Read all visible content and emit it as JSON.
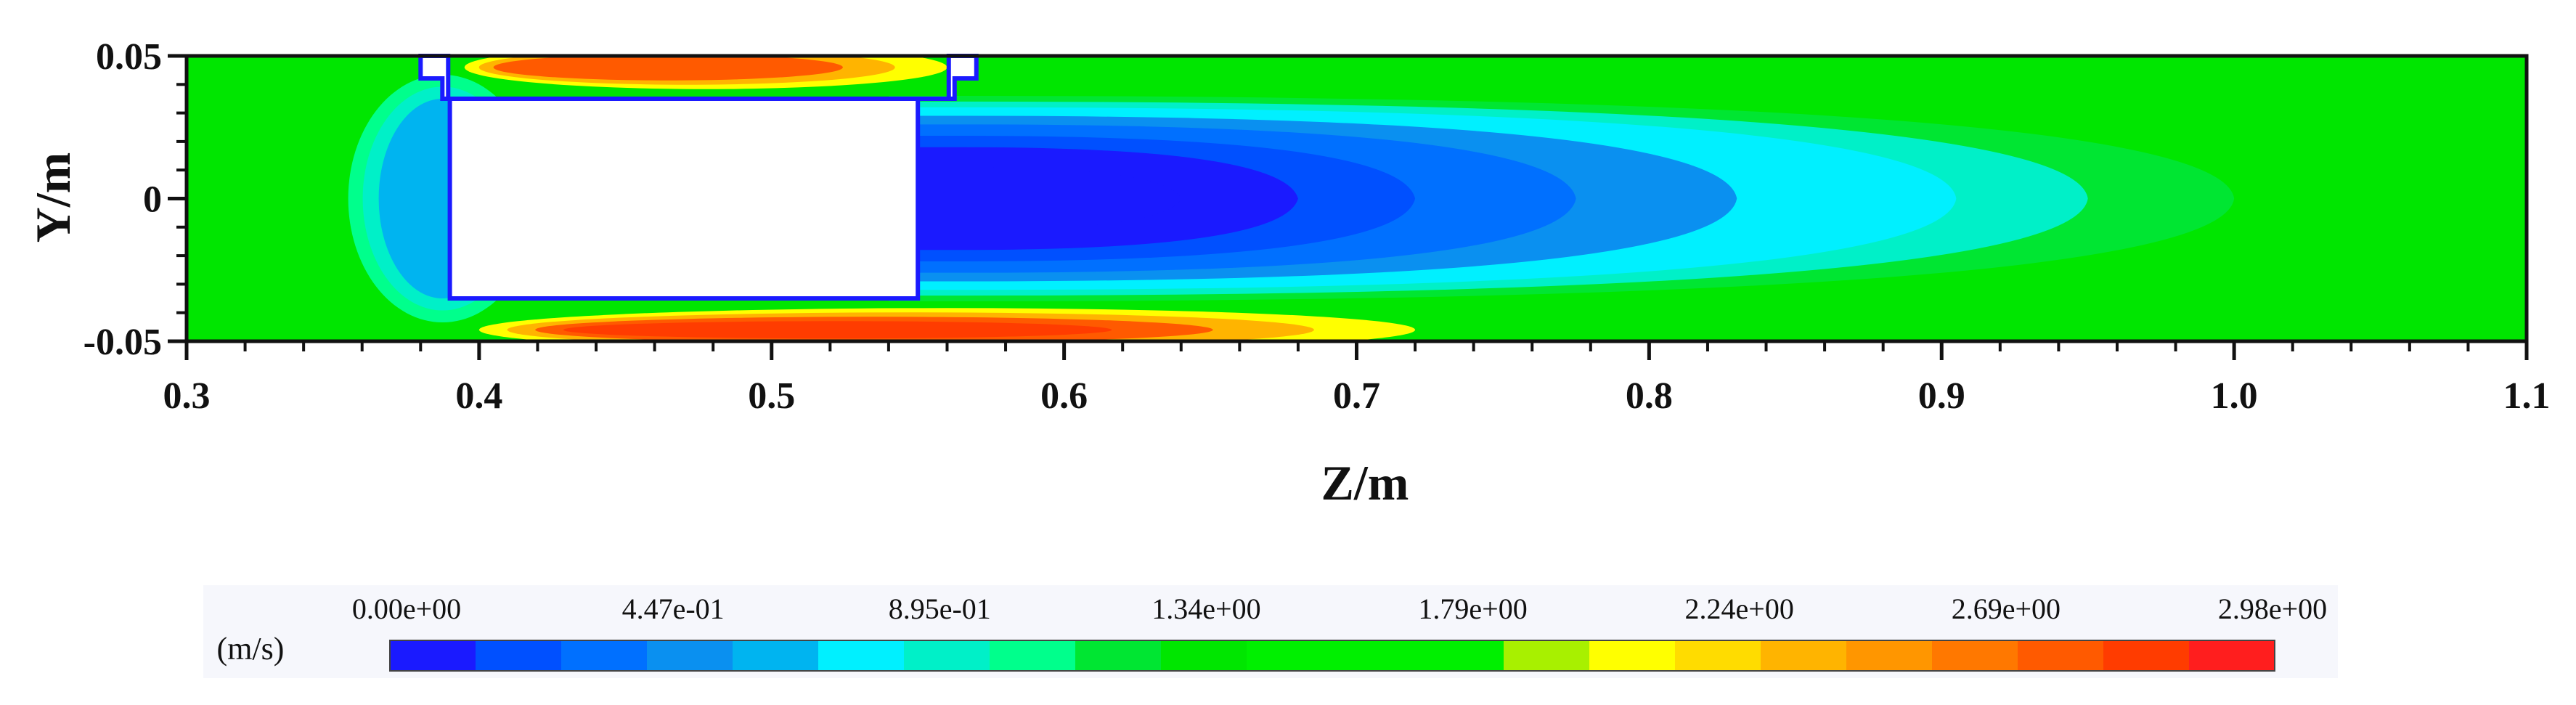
{
  "chart_data": {
    "type": "heatmap",
    "xlabel": "Z/m",
    "ylabel": "Y/m",
    "xlim": [
      0.3,
      1.1
    ],
    "ylim": [
      -0.05,
      0.05
    ],
    "x_ticks": [
      0.3,
      0.4,
      0.5,
      0.6,
      0.7,
      0.8,
      0.9,
      1.0,
      1.1
    ],
    "x_tick_labels": [
      "0.3",
      "0.4",
      "0.5",
      "0.6",
      "0.7",
      "0.8",
      "0.9",
      "1.0",
      "1.1"
    ],
    "y_ticks": [
      0.05,
      0,
      -0.05
    ],
    "y_tick_labels": [
      "0.05",
      "0",
      "-0.05"
    ],
    "quantity_unit": "(m/s)",
    "colorbar": {
      "min": 0.0,
      "max": 2.98,
      "tick_labels": [
        "0.00e+00",
        "4.47e-01",
        "8.95e-01",
        "1.34e+00",
        "1.79e+00",
        "2.24e+00",
        "2.69e+00",
        "2.98e+00"
      ],
      "colors": [
        "#1a1aff",
        "#0050ff",
        "#0070ff",
        "#0a90f0",
        "#00b4f0",
        "#00f0ff",
        "#00f0c8",
        "#00ff8c",
        "#00e632",
        "#00e600",
        "#00f000",
        "#00f000",
        "#00f000",
        "#a8f000",
        "#ffff00",
        "#ffdc00",
        "#ffb400",
        "#ff9600",
        "#ff7800",
        "#ff5a00",
        "#ff3c00",
        "#ff1e1e"
      ]
    },
    "background_velocity": 1.3,
    "obstacle": {
      "body_z": [
        0.39,
        0.55
      ],
      "body_y": [
        -0.035,
        0.035
      ],
      "top_z": [
        0.38,
        0.57
      ],
      "top_y": [
        0.035,
        0.05
      ]
    },
    "features": [
      {
        "kind": "low_velocity_core",
        "z": 0.608,
        "y": 0.0,
        "value": 0.05
      },
      {
        "kind": "wake",
        "z_start": 0.55,
        "z_end": 1.0,
        "y_halfwidth": 0.033,
        "value": 0.45
      },
      {
        "kind": "upstream_stagnation",
        "z": 0.38,
        "y": 0.0,
        "value": 0.6
      },
      {
        "kind": "high_speed_gap_top",
        "z_start": 0.395,
        "z_end": 0.56,
        "y": 0.046,
        "value": 2.7
      },
      {
        "kind": "high_speed_gap_bottom",
        "z_start": 0.4,
        "z_end": 0.72,
        "y": -0.046,
        "value": 2.8
      }
    ]
  }
}
